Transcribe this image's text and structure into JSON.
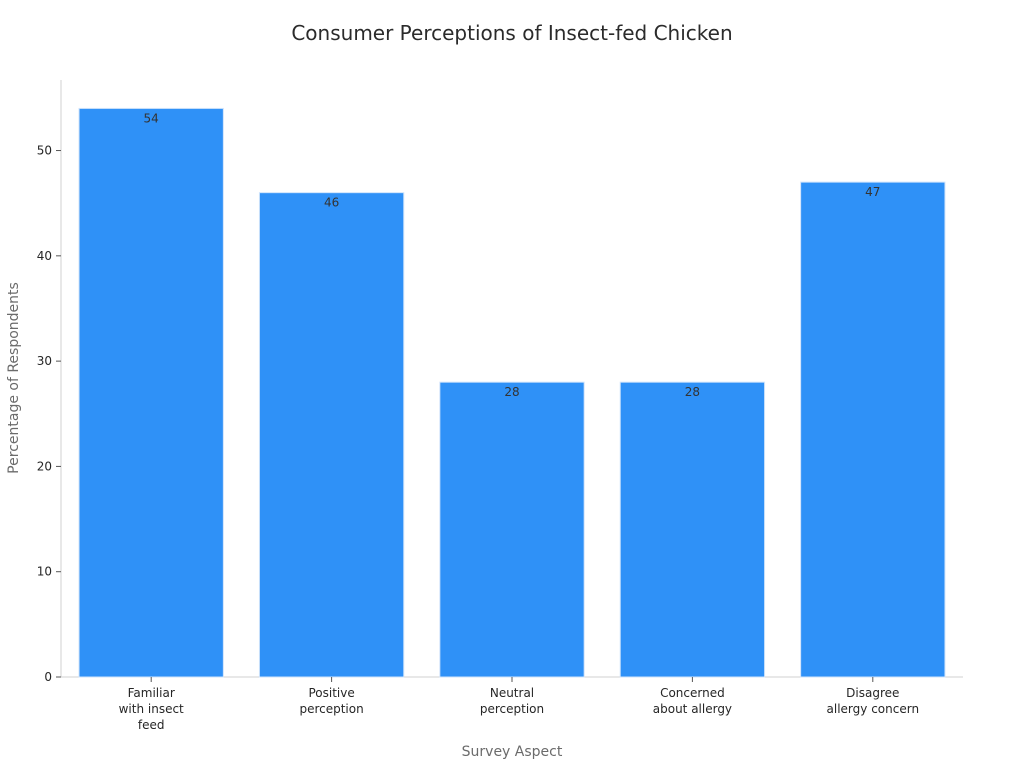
{
  "chart_data": {
    "type": "bar",
    "title": "Consumer Perceptions of Insect-fed Chicken",
    "xlabel": "Survey Aspect",
    "ylabel": "Percentage of Respondents",
    "categories": [
      [
        "Familiar",
        "with insect",
        "feed"
      ],
      [
        "Positive",
        "perception"
      ],
      [
        "Neutral",
        "perception"
      ],
      [
        "Concerned",
        "about allergy"
      ],
      [
        "Disagree",
        "allergy concern"
      ]
    ],
    "values": [
      54,
      46,
      28,
      28,
      47
    ],
    "data_labels": [
      "54",
      "46",
      "28",
      "28",
      "47"
    ],
    "ylim": [
      0,
      56.7
    ],
    "yticks": [
      0,
      10,
      20,
      30,
      40,
      50
    ],
    "grid": false,
    "colors": {
      "bar": "#2f91f7",
      "bar_edge": "#cfe3fb",
      "axis": "#d0d0d0"
    }
  }
}
